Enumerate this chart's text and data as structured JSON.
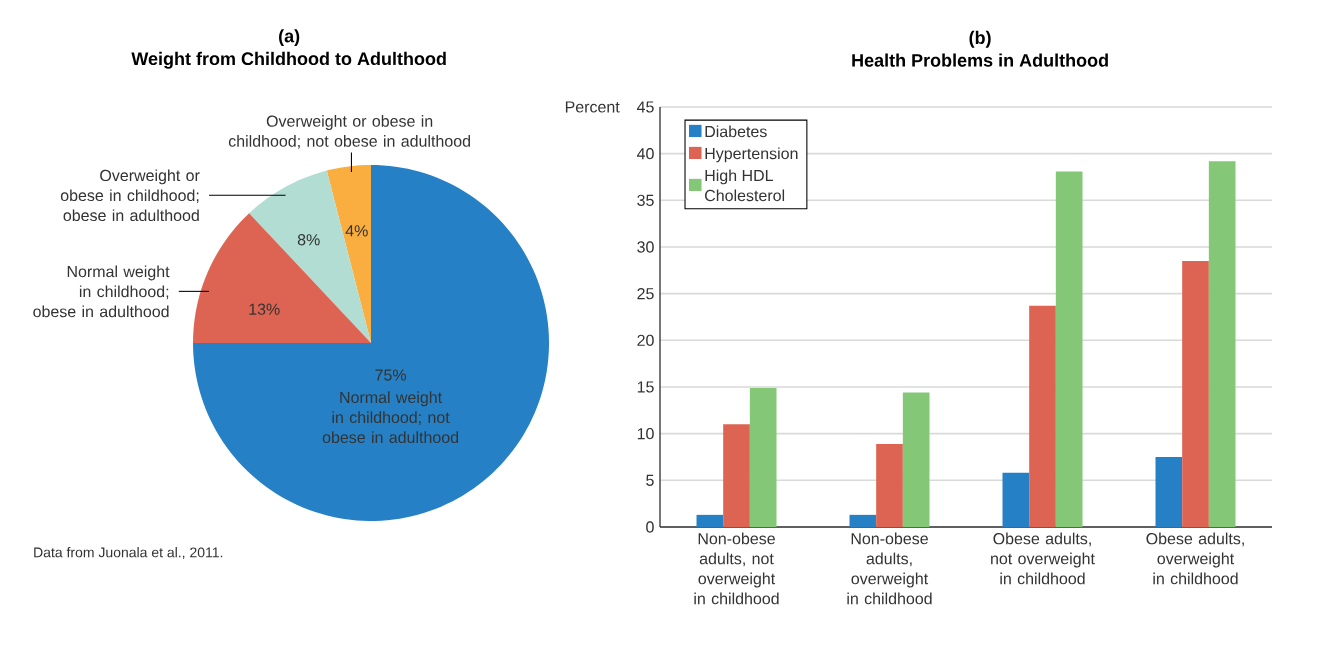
{
  "chart_data": [
    {
      "type": "pie",
      "title": "(a)",
      "subtitle": "Weight from Childhood to Adulthood",
      "categories": [
        "Overweight or obese in childhood; not obese in adulthood",
        "Overweight or obese in childhood; obese in adulthood",
        "Normal weight in childhood; obese in adulthood",
        "Normal weight in childhood; not obese in adulthood"
      ],
      "values": [
        4,
        8,
        13,
        75
      ],
      "value_labels": [
        "4%",
        "8%",
        "13%",
        "75%"
      ],
      "colors": [
        "#f9ae3f",
        "#b2ddd3",
        "#dd6452",
        "#2680c5"
      ],
      "annotations": [
        "Data from Juonala et al., 2011."
      ]
    },
    {
      "type": "bar",
      "title": "(b)",
      "subtitle": "Health Problems in Adulthood",
      "ylabel": "Percent",
      "categories": [
        "Non-obese adults, not overweight in childhood",
        "Non-obese adults, overweight in childhood",
        "Obese adults, not overweight in childhood",
        "Obese adults, overweight in childhood"
      ],
      "series": [
        {
          "name": "Diabetes",
          "color": "#2680c5",
          "values": [
            1.3,
            1.3,
            5.8,
            7.5
          ]
        },
        {
          "name": "Hypertension",
          "color": "#dd6452",
          "values": [
            11.0,
            8.9,
            23.7,
            28.5
          ]
        },
        {
          "name": "High HDL Cholesterol",
          "color": "#84c776",
          "values": [
            14.9,
            14.4,
            38.1,
            39.2
          ]
        }
      ],
      "ylim": [
        0,
        45
      ],
      "yticks": [
        0,
        5,
        10,
        15,
        20,
        25,
        30,
        35,
        40,
        45
      ],
      "grid": "y",
      "legend": "top left"
    }
  ]
}
